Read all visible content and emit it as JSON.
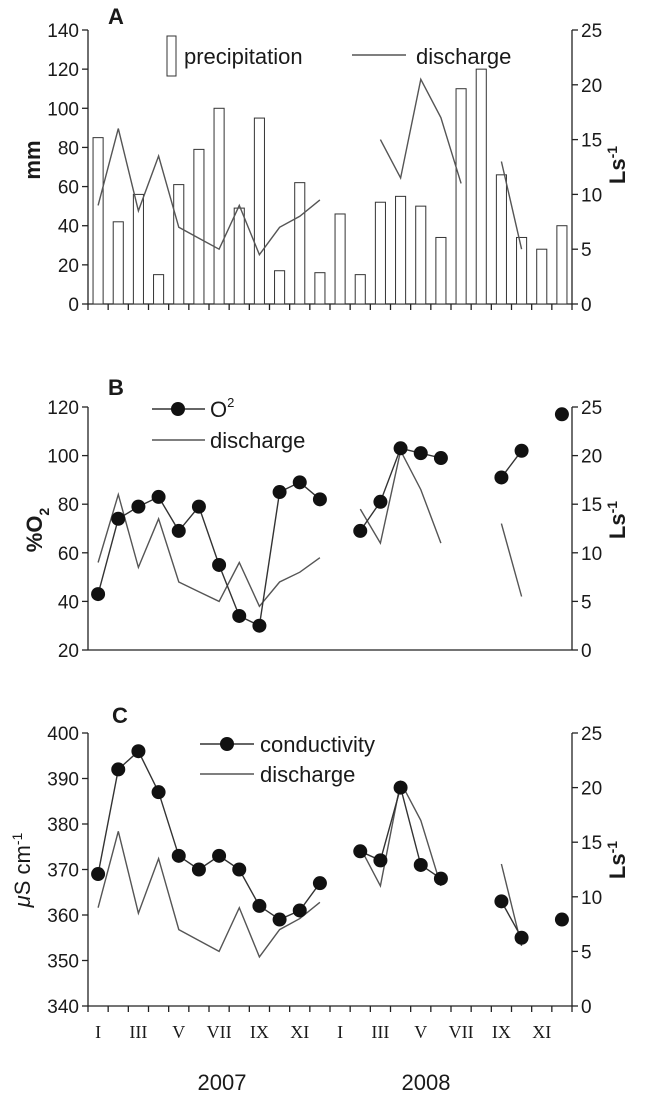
{
  "chart_data": [
    {
      "panel": "A",
      "type": "bar",
      "left_axis": {
        "label": "mm",
        "ticks": [
          "0",
          "20",
          "40",
          "60",
          "80",
          "100",
          "120",
          "140"
        ],
        "ylim": [
          0,
          140
        ]
      },
      "right_axis": {
        "label_main": "Ls",
        "label_sup": "-1",
        "ticks": [
          "0",
          "5",
          "10",
          "15",
          "20",
          "25"
        ],
        "ylim": [
          0,
          25
        ]
      },
      "legend": {
        "bar_label": "precipitation",
        "line_label": "discharge"
      },
      "precipitation": [
        85,
        42,
        56,
        15,
        61,
        79,
        100,
        49,
        95,
        17,
        62,
        16,
        46,
        15,
        52,
        55,
        50,
        34,
        110,
        120,
        66,
        34,
        28,
        40
      ],
      "discharge": [
        9,
        16,
        8.5,
        13.5,
        7,
        6,
        5,
        9,
        4.5,
        7,
        8,
        9.5,
        null,
        null,
        15,
        11.5,
        20.5,
        17,
        11,
        null,
        13,
        5,
        null,
        null
      ]
    },
    {
      "panel": "B",
      "type": "line",
      "left_axis": {
        "label": "%O",
        "label_sub": "2",
        "ticks": [
          "20",
          "40",
          "60",
          "80",
          "100",
          "120"
        ],
        "ylim": [
          20,
          120
        ]
      },
      "right_axis": {
        "label_main": "Ls",
        "label_sup": "-1",
        "ticks": [
          "0",
          "5",
          "10",
          "15",
          "20",
          "25"
        ],
        "ylim": [
          0,
          25
        ]
      },
      "legend": {
        "series1_label": "O",
        "series1_sup": "2",
        "series2_label": "discharge"
      },
      "oxygen": [
        43,
        74,
        79,
        83,
        69,
        79,
        55,
        34,
        30,
        85,
        89,
        82,
        null,
        69,
        81,
        103,
        101,
        99,
        null,
        null,
        91,
        102,
        null,
        117
      ],
      "discharge": [
        9,
        16,
        8.5,
        13.5,
        7,
        6,
        5,
        9,
        4.5,
        7,
        8,
        9.5,
        null,
        14.5,
        11,
        20.5,
        16.5,
        11,
        null,
        null,
        13,
        5.5,
        null,
        null
      ]
    },
    {
      "panel": "C",
      "type": "line",
      "left_axis": {
        "label_mu": "μ",
        "label_rest": "S cm",
        "label_sup": "-1",
        "ticks": [
          "340",
          "350",
          "360",
          "370",
          "380",
          "390",
          "400"
        ],
        "ylim": [
          340,
          400
        ]
      },
      "right_axis": {
        "label_main": "Ls",
        "label_sup": "-1",
        "ticks": [
          "0",
          "5",
          "10",
          "15",
          "20",
          "25"
        ],
        "ylim": [
          0,
          25
        ]
      },
      "legend": {
        "series1_label": "conductivity",
        "series2_label": "discharge"
      },
      "conductivity": [
        369,
        392,
        396,
        387,
        373,
        370,
        373,
        370,
        362,
        359,
        361,
        367,
        null,
        374,
        372,
        388,
        371,
        368,
        null,
        null,
        363,
        355,
        null,
        359
      ],
      "discharge": [
        9,
        16,
        8.5,
        13.5,
        7,
        6,
        5,
        9,
        4.5,
        7,
        8,
        9.5,
        null,
        14.5,
        11,
        20.5,
        17,
        11,
        null,
        null,
        13,
        5.5,
        null,
        null
      ]
    }
  ],
  "x_axis": {
    "month_ticks": [
      "I",
      "III",
      "V",
      "VII",
      "IX",
      "XI",
      "I",
      "III",
      "V",
      "VII",
      "IX",
      "XI"
    ],
    "years": [
      "2007",
      "2008"
    ]
  }
}
